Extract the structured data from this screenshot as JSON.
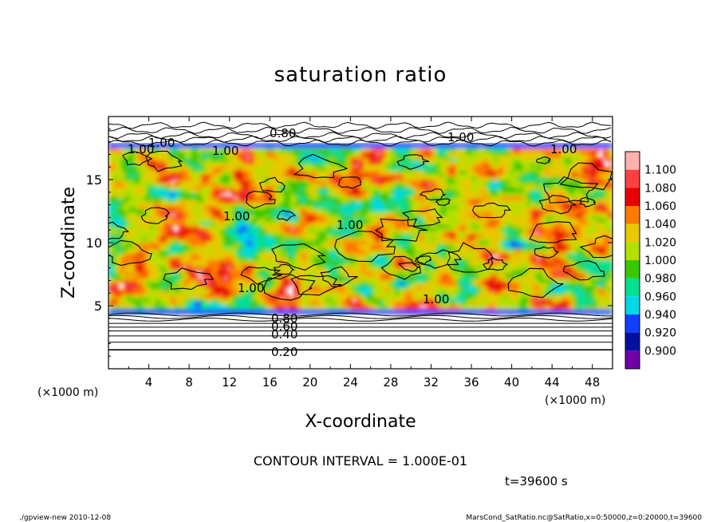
{
  "chart_data": {
    "type": "heatmap",
    "title": "saturation ratio",
    "xlabel": "X-coordinate",
    "ylabel": "Z-coordinate",
    "x_unit": "(×1000 m)",
    "y_unit": "(×1000 m)",
    "xlim": [
      0,
      50
    ],
    "ylim": [
      0,
      20
    ],
    "x_ticks": [
      4,
      8,
      12,
      16,
      20,
      24,
      28,
      32,
      36,
      40,
      44,
      48
    ],
    "y_ticks": [
      5,
      10,
      15
    ],
    "colorbar": {
      "levels": [
        "1.100",
        "1.080",
        "1.060",
        "1.040",
        "1.020",
        "1.000",
        "0.980",
        "0.960",
        "0.940",
        "0.920",
        "0.900"
      ],
      "colors": [
        "#ffb0b0",
        "#ff4040",
        "#e80000",
        "#ff7a00",
        "#e8c800",
        "#b4e000",
        "#38c800",
        "#00e090",
        "#00d8e8",
        "#1040ff",
        "#0010a0",
        "#7000a8"
      ]
    },
    "contour_labels": [
      "0.80",
      "1.00",
      "0.60",
      "0.40",
      "0.20"
    ],
    "contour_interval": "CONTOUR INTERVAL = 1.000E-01",
    "time": "t=39600 s"
  },
  "footer": {
    "left": "./gpview-new  2010-12-08",
    "right": "MarsCond_SatRatio.nc@SatRatio,x=0:50000,z=0:20000,t=39600"
  }
}
